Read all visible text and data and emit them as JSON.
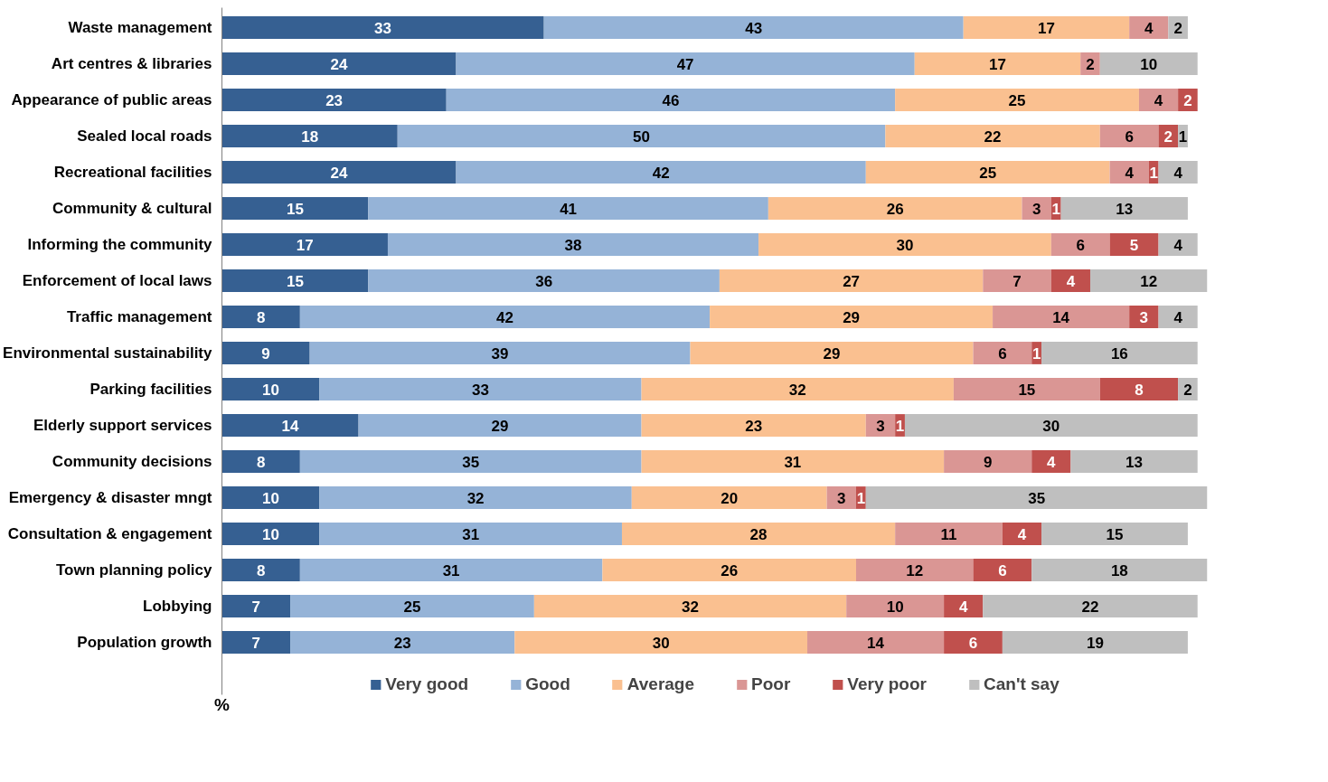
{
  "chart_data": {
    "type": "bar",
    "orientation": "horizontal",
    "stacked": true,
    "data_labels": true,
    "xlabel": "%",
    "legend": "bottom",
    "grid": false,
    "tick_labels": "y",
    "categories": [
      "Waste management",
      "Art centres & libraries",
      "Appearance of public areas",
      "Sealed local roads",
      "Recreational facilities",
      "Community & cultural",
      "Informing the community",
      "Enforcement of local laws",
      "Traffic management",
      "Environmental sustainability",
      "Parking facilities",
      "Elderly support services",
      "Community decisions",
      "Emergency & disaster mngt",
      "Consultation & engagement",
      "Town planning policy",
      "Lobbying",
      "Population growth"
    ],
    "series": [
      {
        "name": "Very good",
        "color": "#366092",
        "values": [
          33,
          24,
          23,
          18,
          24,
          15,
          17,
          15,
          8,
          9,
          10,
          14,
          8,
          10,
          10,
          8,
          7,
          7
        ]
      },
      {
        "name": "Good",
        "color": "#95b3d7",
        "values": [
          43,
          47,
          46,
          50,
          42,
          41,
          38,
          36,
          42,
          39,
          33,
          29,
          35,
          32,
          31,
          31,
          25,
          23
        ]
      },
      {
        "name": "Average",
        "color": "#fac090",
        "values": [
          17,
          17,
          25,
          22,
          25,
          26,
          30,
          27,
          29,
          29,
          32,
          23,
          31,
          20,
          28,
          26,
          32,
          30
        ]
      },
      {
        "name": "Poor",
        "color": "#da9694",
        "values": [
          4,
          2,
          4,
          6,
          4,
          3,
          6,
          7,
          14,
          6,
          15,
          3,
          9,
          3,
          11,
          12,
          10,
          14
        ]
      },
      {
        "name": "Very poor",
        "color": "#c0504d",
        "values": [
          null,
          null,
          2,
          2,
          1,
          1,
          5,
          4,
          3,
          1,
          8,
          1,
          4,
          1,
          4,
          6,
          4,
          6
        ]
      },
      {
        "name": "Can't say",
        "color": "#bfbfbf",
        "values": [
          2,
          10,
          null,
          1,
          4,
          13,
          4,
          12,
          4,
          16,
          2,
          30,
          13,
          35,
          15,
          18,
          22,
          19
        ]
      }
    ]
  }
}
